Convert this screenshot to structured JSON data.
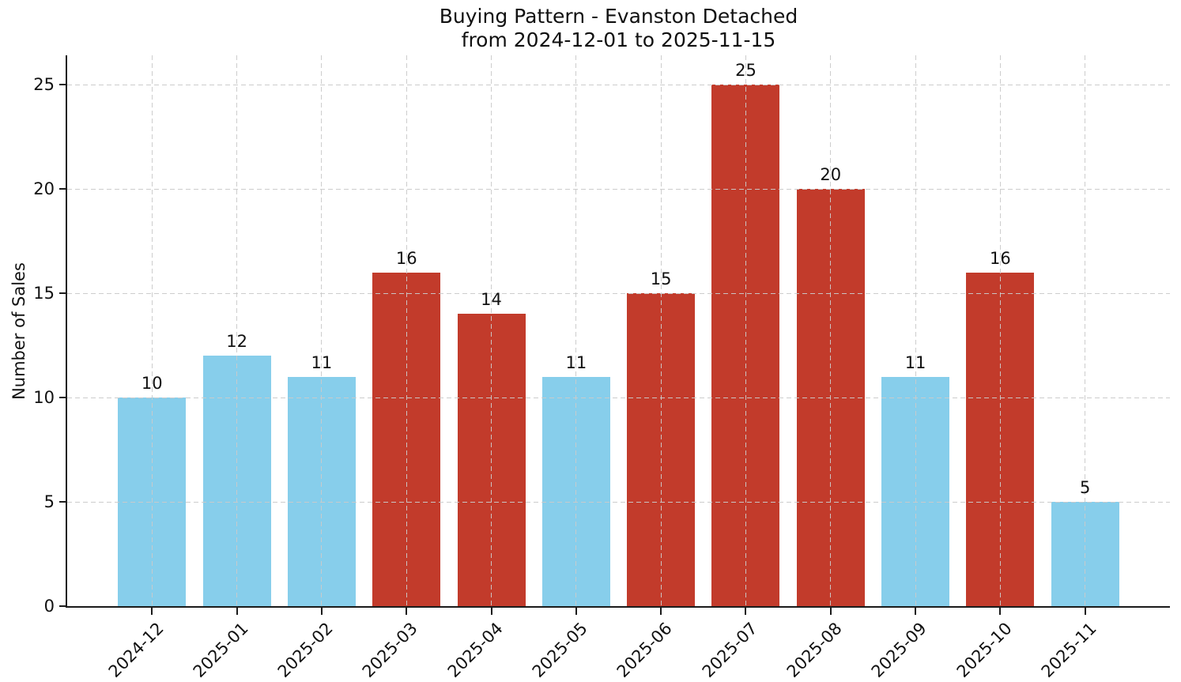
{
  "chart_data": {
    "type": "bar",
    "title": "Buying Pattern - Evanston Detached",
    "subtitle": "from 2024-12-01 to 2025-11-15",
    "ylabel": "Number of Sales",
    "xlabel": "",
    "categories": [
      "2024-12",
      "2025-01",
      "2025-02",
      "2025-03",
      "2025-04",
      "2025-05",
      "2025-06",
      "2025-07",
      "2025-08",
      "2025-09",
      "2025-10",
      "2025-11"
    ],
    "values": [
      10,
      12,
      11,
      16,
      14,
      11,
      15,
      25,
      20,
      11,
      16,
      5
    ],
    "bar_colors": [
      "#87ceeb",
      "#87ceeb",
      "#87ceeb",
      "#c23b2b",
      "#c23b2b",
      "#87ceeb",
      "#c23b2b",
      "#c23b2b",
      "#c23b2b",
      "#87ceeb",
      "#c23b2b",
      "#87ceeb"
    ],
    "colors": {
      "blue": "#87ceeb",
      "red": "#c23b2b"
    },
    "yticks": [
      0,
      5,
      10,
      15,
      20,
      25
    ],
    "ylim": [
      0,
      26.4
    ],
    "grid": {
      "linestyle": "dashed",
      "color": "#cccccc",
      "above_bars": true
    },
    "legend": "none",
    "x_tick_rotation_deg": 45
  }
}
